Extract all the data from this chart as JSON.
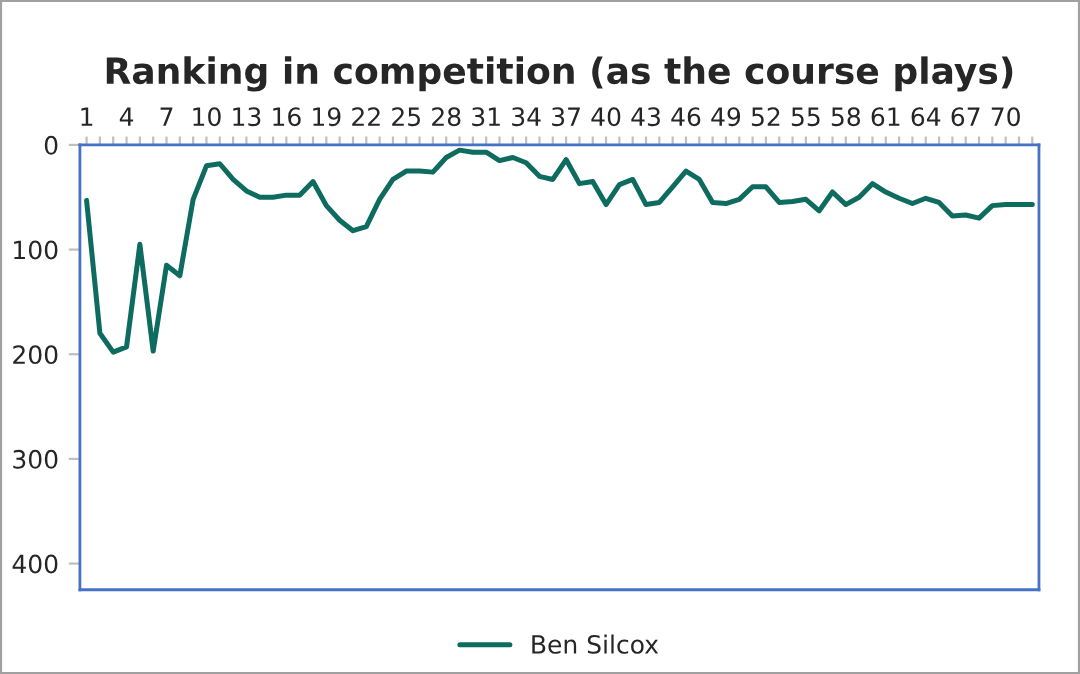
{
  "chart_data": {
    "type": "line",
    "title": "Ranking in competition (as the course plays)",
    "categories": [
      "1",
      null,
      null,
      "4",
      null,
      null,
      "7",
      null,
      null,
      "10",
      null,
      null,
      "13",
      null,
      null,
      "16",
      null,
      null,
      "19",
      null,
      null,
      "22",
      null,
      null,
      "25",
      null,
      null,
      "28",
      null,
      null,
      "31",
      null,
      null,
      "34",
      null,
      null,
      "37",
      null,
      null,
      "40",
      null,
      null,
      "43",
      null,
      null,
      "46",
      null,
      null,
      "49",
      null,
      null,
      "52",
      null,
      null,
      "55",
      null,
      null,
      "58",
      null,
      null,
      "61",
      null,
      null,
      "64",
      null,
      null,
      "67",
      null,
      null,
      "70",
      null,
      null
    ],
    "series": [
      {
        "name": "Ben Silcox",
        "color": "#0e6b5f",
        "values": [
          53,
          180,
          198,
          193,
          95,
          197,
          115,
          125,
          52,
          20,
          18,
          33,
          44,
          50,
          50,
          48,
          48,
          35,
          58,
          72,
          82,
          78,
          52,
          33,
          25,
          25,
          26,
          12,
          5,
          7,
          7,
          15,
          12,
          17,
          30,
          33,
          14,
          37,
          35,
          57,
          38,
          33,
          57,
          55,
          40,
          25,
          33,
          55,
          56,
          52,
          40,
          40,
          55,
          54,
          52,
          63,
          45,
          57,
          50,
          37,
          45,
          51,
          56,
          51,
          55,
          68,
          67,
          70,
          58,
          57,
          57,
          57
        ]
      }
    ],
    "ylim": [
      425,
      0
    ],
    "yticks": [
      0,
      100,
      200,
      300,
      400
    ],
    "grid": false,
    "legend": "bottom",
    "marker": "none",
    "line_style": "solid"
  }
}
